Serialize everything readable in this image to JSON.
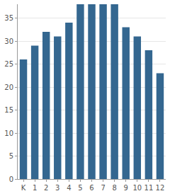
{
  "chart_data": {
    "type": "bar",
    "categories": [
      "K",
      "1",
      "2",
      "3",
      "4",
      "5",
      "6",
      "7",
      "8",
      "9",
      "10",
      "11",
      "12"
    ],
    "values": [
      26,
      29,
      32,
      31,
      34,
      38,
      38,
      38,
      38,
      33,
      31,
      28,
      23
    ],
    "color": "#346790",
    "ylim": [
      0,
      38
    ],
    "yticks": [
      0,
      5,
      10,
      15,
      20,
      25,
      30,
      35
    ],
    "grid": true
  }
}
